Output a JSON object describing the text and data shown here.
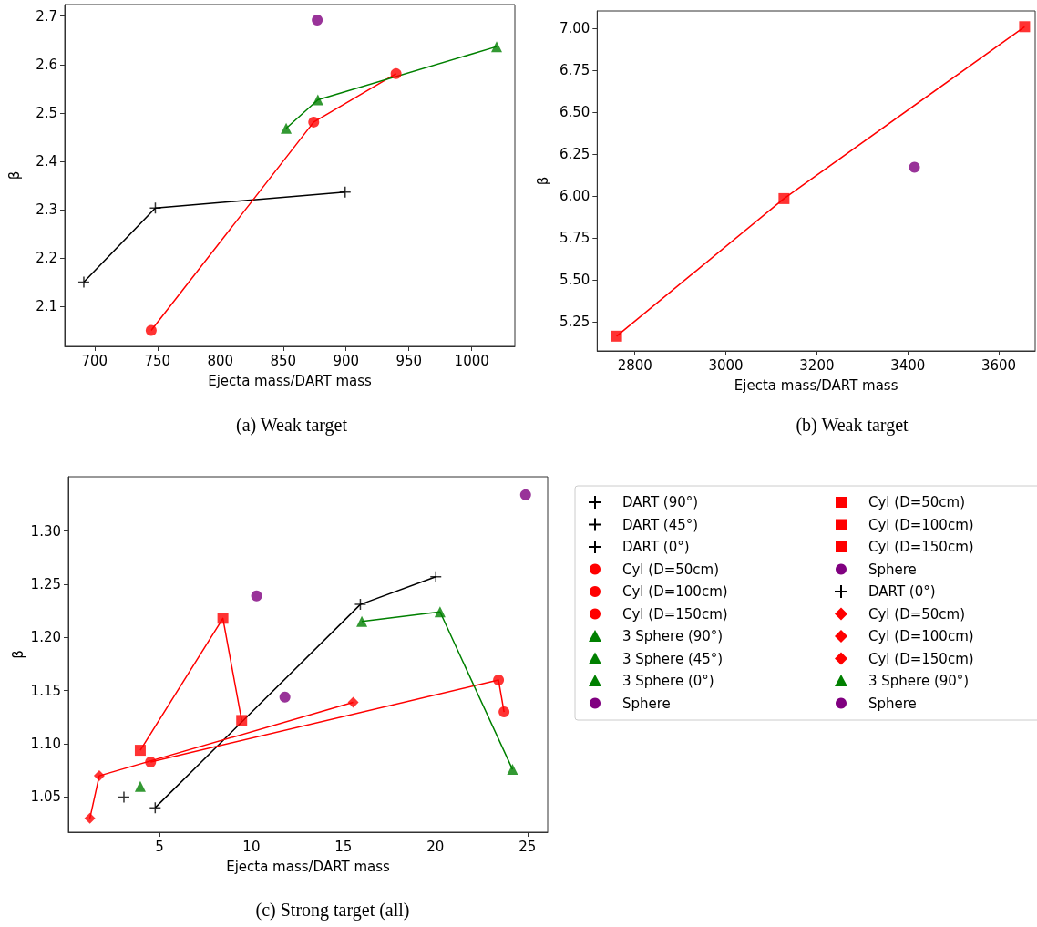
{
  "chart_data": [
    {
      "type": "scatter",
      "title": "(a) Weak target",
      "xlabel": "Ejecta mass/DART mass",
      "ylabel": "β",
      "xlim": [
        676.2,
        1034.3
      ],
      "xticks": [
        700,
        750,
        800,
        850,
        900,
        950,
        1000
      ],
      "ylim": [
        2.017,
        2.724
      ],
      "yticks": [
        2.1,
        2.2,
        2.3,
        2.4,
        2.5,
        2.6,
        2.7
      ],
      "grid": false,
      "legend": false,
      "series": [
        {
          "type": "line",
          "color": "#000000",
          "marker": "none",
          "x": [
            691.4,
            748.3,
            899.3
          ],
          "values": [
            2.15,
            2.303,
            2.336
          ]
        },
        {
          "type": "line",
          "color": "#ff0000",
          "marker": "none",
          "x": [
            745,
            874.3,
            939.8
          ],
          "values": [
            2.05,
            2.481,
            2.581
          ]
        },
        {
          "type": "line",
          "color": "#008000",
          "marker": "none",
          "x": [
            852.4,
            877.6,
            1019.8
          ],
          "values": [
            2.468,
            2.527,
            2.637
          ]
        },
        {
          "color": "#000000",
          "marker": "cross",
          "x": [
            899.3
          ],
          "values": [
            2.336
          ]
        },
        {
          "color": "#000000",
          "marker": "cross",
          "x": [
            691.4
          ],
          "values": [
            2.15
          ]
        },
        {
          "color": "#000000",
          "marker": "cross",
          "x": [
            748.3
          ],
          "values": [
            2.303
          ]
        },
        {
          "color": "#ff0000",
          "marker": "circle",
          "x": [
            939.8
          ],
          "values": [
            2.581
          ]
        },
        {
          "color": "#ff0000",
          "marker": "circle",
          "x": [
            874.3
          ],
          "values": [
            2.481
          ]
        },
        {
          "color": "#ff0000",
          "marker": "circle",
          "x": [
            745
          ],
          "values": [
            2.05
          ]
        },
        {
          "color": "#008000",
          "marker": "triangle",
          "x": [
            1019.8
          ],
          "values": [
            2.637
          ]
        },
        {
          "color": "#008000",
          "marker": "triangle",
          "x": [
            877.6
          ],
          "values": [
            2.527
          ]
        },
        {
          "color": "#008000",
          "marker": "triangle",
          "x": [
            852.4
          ],
          "values": [
            2.468
          ]
        },
        {
          "color": "#800080",
          "marker": "circle",
          "x": [
            877.1
          ],
          "values": [
            2.692
          ]
        }
      ]
    },
    {
      "type": "scatter",
      "title": "(b) Weak target",
      "xlabel": "Ejecta mass/DART mass",
      "ylabel": "β",
      "xlim": [
        2717,
        3680
      ],
      "xticks": [
        2800,
        3000,
        3200,
        3400,
        3600
      ],
      "ylim": [
        5.075,
        7.104
      ],
      "yticks": [
        {
          "value": 5.25,
          "label": "5.25"
        },
        {
          "value": 5.5,
          "label": "5.50"
        },
        {
          "value": 5.75,
          "label": "5.75"
        },
        {
          "value": 6,
          "label": "6.00"
        },
        {
          "value": 6.25,
          "label": "6.25"
        },
        {
          "value": 6.5,
          "label": "6.50"
        },
        {
          "value": 6.75,
          "label": "6.75"
        },
        {
          "value": 7,
          "label": "7.00"
        }
      ],
      "grid": false,
      "legend": false,
      "series": [
        {
          "type": "line",
          "color": "#ff0000",
          "marker": "none",
          "x": [
            2759.7,
            3127.8,
            3656.8
          ],
          "values": [
            5.163,
            5.984,
            7.01
          ]
        },
        {
          "color": "#ff0000",
          "marker": "square",
          "x": [
            3656.8
          ],
          "values": [
            7.01
          ]
        },
        {
          "color": "#ff0000",
          "marker": "square",
          "x": [
            3127.8
          ],
          "values": [
            5.984
          ]
        },
        {
          "color": "#ff0000",
          "marker": "square",
          "x": [
            2759.7
          ],
          "values": [
            5.163
          ]
        },
        {
          "color": "#800080",
          "marker": "circle",
          "x": [
            3414.6
          ],
          "values": [
            6.171
          ]
        }
      ]
    },
    {
      "type": "scatter",
      "title": "(c) Strong target (all)",
      "xlabel": "Ejecta mass/DART mass",
      "ylabel": "β",
      "xlim": [
        0.05,
        26.1
      ],
      "xticks": [
        5,
        10,
        15,
        20,
        25
      ],
      "ylim": [
        1.017,
        1.351
      ],
      "yticks": [
        1.05,
        {
          "value": 1.1,
          "label": "1.10"
        },
        1.15,
        {
          "value": 1.2,
          "label": "1.20"
        },
        1.25,
        {
          "value": 1.3,
          "label": "1.30"
        }
      ],
      "grid": false,
      "legend": "right",
      "series": [
        {
          "type": "line",
          "color": "#000000",
          "marker": "none",
          "x": [
            4.77,
            15.92,
            20.02
          ],
          "values": [
            1.04,
            1.231,
            1.257
          ]
        },
        {
          "type": "line",
          "color": "#ff0000",
          "marker": "none",
          "x": [
            4.52,
            23.43,
            23.73
          ],
          "values": [
            1.083,
            1.16,
            1.13
          ]
        },
        {
          "type": "line",
          "color": "#008000",
          "marker": "none",
          "x": [
            16.0,
            20.25,
            24.19
          ],
          "values": [
            1.215,
            1.224,
            1.076
          ]
        },
        {
          "type": "line",
          "color": "#ff0000",
          "marker": "none",
          "x": [
            3.96,
            8.45,
            9.47
          ],
          "values": [
            1.094,
            1.218,
            1.122
          ]
        },
        {
          "type": "line",
          "color": "#ff0000",
          "marker": "none",
          "x": [
            1.22,
            1.73,
            15.53
          ],
          "values": [
            1.03,
            1.07,
            1.139
          ]
        },
        {
          "name": "DART (90°)",
          "color": "#000000",
          "marker": "cross",
          "x": [
            4.77
          ],
          "values": [
            1.04
          ]
        },
        {
          "name": "DART (45°)",
          "color": "#000000",
          "marker": "cross",
          "x": [
            15.92
          ],
          "values": [
            1.231
          ]
        },
        {
          "name": "DART (0°)",
          "color": "#000000",
          "marker": "cross",
          "x": [
            20.02
          ],
          "values": [
            1.257
          ]
        },
        {
          "name": "Cyl (D=50cm)",
          "color": "#ff0000",
          "marker": "circle",
          "x": [
            23.73
          ],
          "values": [
            1.13
          ]
        },
        {
          "name": "Cyl (D=100cm)",
          "color": "#ff0000",
          "marker": "circle",
          "x": [
            23.43
          ],
          "values": [
            1.16
          ]
        },
        {
          "name": "Cyl (D=150cm)",
          "color": "#ff0000",
          "marker": "circle",
          "x": [
            4.52
          ],
          "values": [
            1.083
          ]
        },
        {
          "name": "3 Sphere (90°)",
          "color": "#008000",
          "marker": "triangle",
          "x": [
            24.19
          ],
          "values": [
            1.076
          ]
        },
        {
          "name": "3 Sphere (45°)",
          "color": "#008000",
          "marker": "triangle",
          "x": [
            20.25
          ],
          "values": [
            1.224
          ]
        },
        {
          "name": "3 Sphere (0°)",
          "color": "#008000",
          "marker": "triangle",
          "x": [
            16.0
          ],
          "values": [
            1.215
          ]
        },
        {
          "name": "Sphere",
          "color": "#800080",
          "marker": "circle",
          "x": [
            24.9
          ],
          "values": [
            1.334
          ]
        },
        {
          "name": "Cyl (D=50cm)",
          "color": "#ff0000",
          "marker": "square",
          "x": [
            9.47
          ],
          "values": [
            1.122
          ]
        },
        {
          "name": "Cyl (D=100cm)",
          "color": "#ff0000",
          "marker": "square",
          "x": [
            8.45
          ],
          "values": [
            1.218
          ]
        },
        {
          "name": "Cyl (D=150cm)",
          "color": "#ff0000",
          "marker": "square",
          "x": [
            3.96
          ],
          "values": [
            1.094
          ]
        },
        {
          "name": "Sphere",
          "color": "#800080",
          "marker": "circle",
          "x": [
            10.28
          ],
          "values": [
            1.239
          ]
        },
        {
          "name": "DART (0°)",
          "color": "#000000",
          "marker": "cross",
          "x": [
            3.07
          ],
          "values": [
            1.05
          ]
        },
        {
          "name": "Cyl (D=50cm)",
          "color": "#ff0000",
          "marker": "diamond",
          "x": [
            15.53
          ],
          "values": [
            1.139
          ]
        },
        {
          "name": "Cyl (D=100cm)",
          "color": "#ff0000",
          "marker": "diamond",
          "x": [
            1.73
          ],
          "values": [
            1.07
          ]
        },
        {
          "name": "Cyl (D=150cm)",
          "color": "#ff0000",
          "marker": "diamond",
          "x": [
            1.22
          ],
          "values": [
            1.03
          ]
        },
        {
          "name": "3 Sphere (90°)",
          "color": "#008000",
          "marker": "triangle",
          "x": [
            3.96
          ],
          "values": [
            1.06
          ]
        },
        {
          "name": "Sphere",
          "color": "#800080",
          "marker": "circle",
          "x": [
            11.82
          ],
          "values": [
            1.144
          ]
        }
      ]
    }
  ]
}
